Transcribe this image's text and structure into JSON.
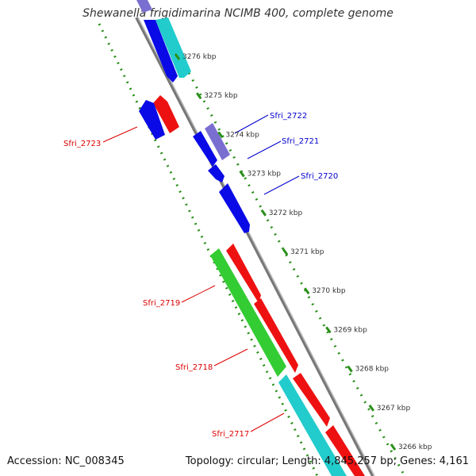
{
  "title": "Shewanella frigidimarina NCIMB 400, complete genome",
  "footer": {
    "accession": "Accession: NC_008345",
    "topology": "Topology: circular; Length: 4,845,257 bp; Genes: 4,161"
  },
  "colors": {
    "backbone": "#8c8c8c",
    "kbp_ticks": "#2a8f1a",
    "blue": "#0a0ae6",
    "red": "#ee1111",
    "green": "#33cc33",
    "cyan": "#22cccc",
    "purple": "#7a6fd0",
    "label_red": "#dd0000",
    "label_blue": "#0000cc"
  },
  "kbp_ticks": [
    {
      "label": "3276 kbp",
      "kbp": 3276
    },
    {
      "label": "3275 kbp",
      "kbp": 3275
    },
    {
      "label": "3274 kbp",
      "kbp": 3274
    },
    {
      "label": "3273 kbp",
      "kbp": 3273
    },
    {
      "label": "3272 kbp",
      "kbp": 3272
    },
    {
      "label": "3271 kbp",
      "kbp": 3271
    },
    {
      "label": "3270 kbp",
      "kbp": 3270
    },
    {
      "label": "3269 kbp",
      "kbp": 3269
    },
    {
      "label": "3268 kbp",
      "kbp": 3268
    },
    {
      "label": "3267 kbp",
      "kbp": 3267
    },
    {
      "label": "3266 kbp",
      "kbp": 3266
    }
  ],
  "gene_labels": [
    {
      "name": "Sfri_2722",
      "color": "blue"
    },
    {
      "name": "Sfri_2721",
      "color": "blue"
    },
    {
      "name": "Sfri_2720",
      "color": "blue"
    },
    {
      "name": "Sfri_2723",
      "color": "red"
    },
    {
      "name": "Sfri_2719",
      "color": "red"
    },
    {
      "name": "Sfri_2718",
      "color": "red"
    },
    {
      "name": "Sfri_2717",
      "color": "red"
    }
  ]
}
